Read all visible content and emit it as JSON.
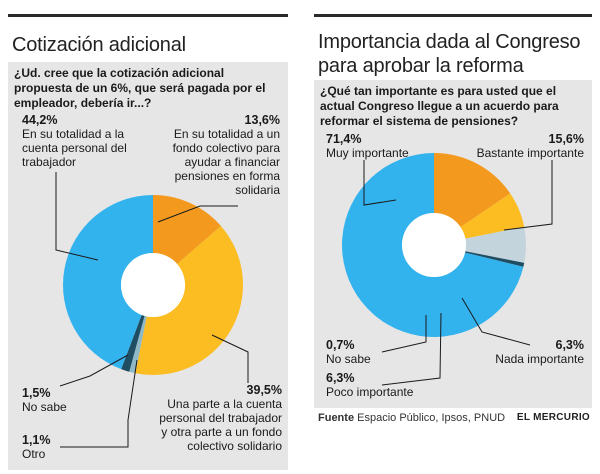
{
  "left": {
    "title": "Cotización adicional",
    "question": "¿Ud. cree que la cotización adicional propuesta de un 6%, que será pagada por el empleador, debería ir...?",
    "labels": {
      "cuenta_personal": {
        "pct": "44,2%",
        "text": "En su totalidad a la cuenta personal del trabajador"
      },
      "fondo_colectivo": {
        "pct": "13,6%",
        "text": "En su totalidad a un fondo colectivo para ayudar a financiar pensiones en forma solidaria"
      },
      "mixto": {
        "pct": "39,5%",
        "text": "Una parte a la cuenta personal del trabajador y otra parte a un fondo colectivo solidario"
      },
      "no_sabe": {
        "pct": "1,5%",
        "text": "No sabe"
      },
      "otro": {
        "pct": "1,1%",
        "text": "Otro"
      }
    }
  },
  "right": {
    "title": "Importancia dada al Congreso para aprobar la reforma",
    "question": "¿Qué tan importante es para usted que el actual Congreso llegue a un acuerdo para reformar el sistema de pensiones?",
    "labels": {
      "muy": {
        "pct": "71,4%",
        "text": "Muy importante"
      },
      "bastante": {
        "pct": "15,6%",
        "text": "Bastante importante"
      },
      "nada": {
        "pct": "6,3%",
        "text": "Nada importante"
      },
      "poco": {
        "pct": "6,3%",
        "text": "Poco importante"
      },
      "no_sabe": {
        "pct": "0,7%",
        "text": "No sabe"
      }
    }
  },
  "source": {
    "label": "Fuente",
    "text": "Espacio Público, Ipsos, PNUD"
  },
  "brand": "EL MERCURIO",
  "chart_data": [
    {
      "type": "pie",
      "title": "Cotización adicional",
      "categories": [
        "En su totalidad a un fondo colectivo para ayudar a financiar pensiones en forma solidaria",
        "Una parte a la cuenta personal del trabajador y otra parte a un fondo colectivo solidario",
        "Otro",
        "No sabe",
        "En su totalidad a la cuenta personal del trabajador"
      ],
      "values": [
        13.6,
        39.5,
        1.1,
        1.5,
        44.2
      ],
      "colors": [
        "#f39a1e",
        "#fbbd22",
        "#8fb9c7",
        "#1f4e63",
        "#33b3ee"
      ],
      "donut": true
    },
    {
      "type": "pie",
      "title": "Importancia dada al Congreso para aprobar la reforma",
      "categories": [
        "Bastante importante",
        "Nada importante",
        "Poco importante",
        "No sabe",
        "Muy importante"
      ],
      "values": [
        15.6,
        6.3,
        6.3,
        0.7,
        71.4
      ],
      "colors": [
        "#f39a1e",
        "#fbbd22",
        "#c3d4dc",
        "#1f4e63",
        "#33b3ee"
      ],
      "donut": true
    }
  ]
}
